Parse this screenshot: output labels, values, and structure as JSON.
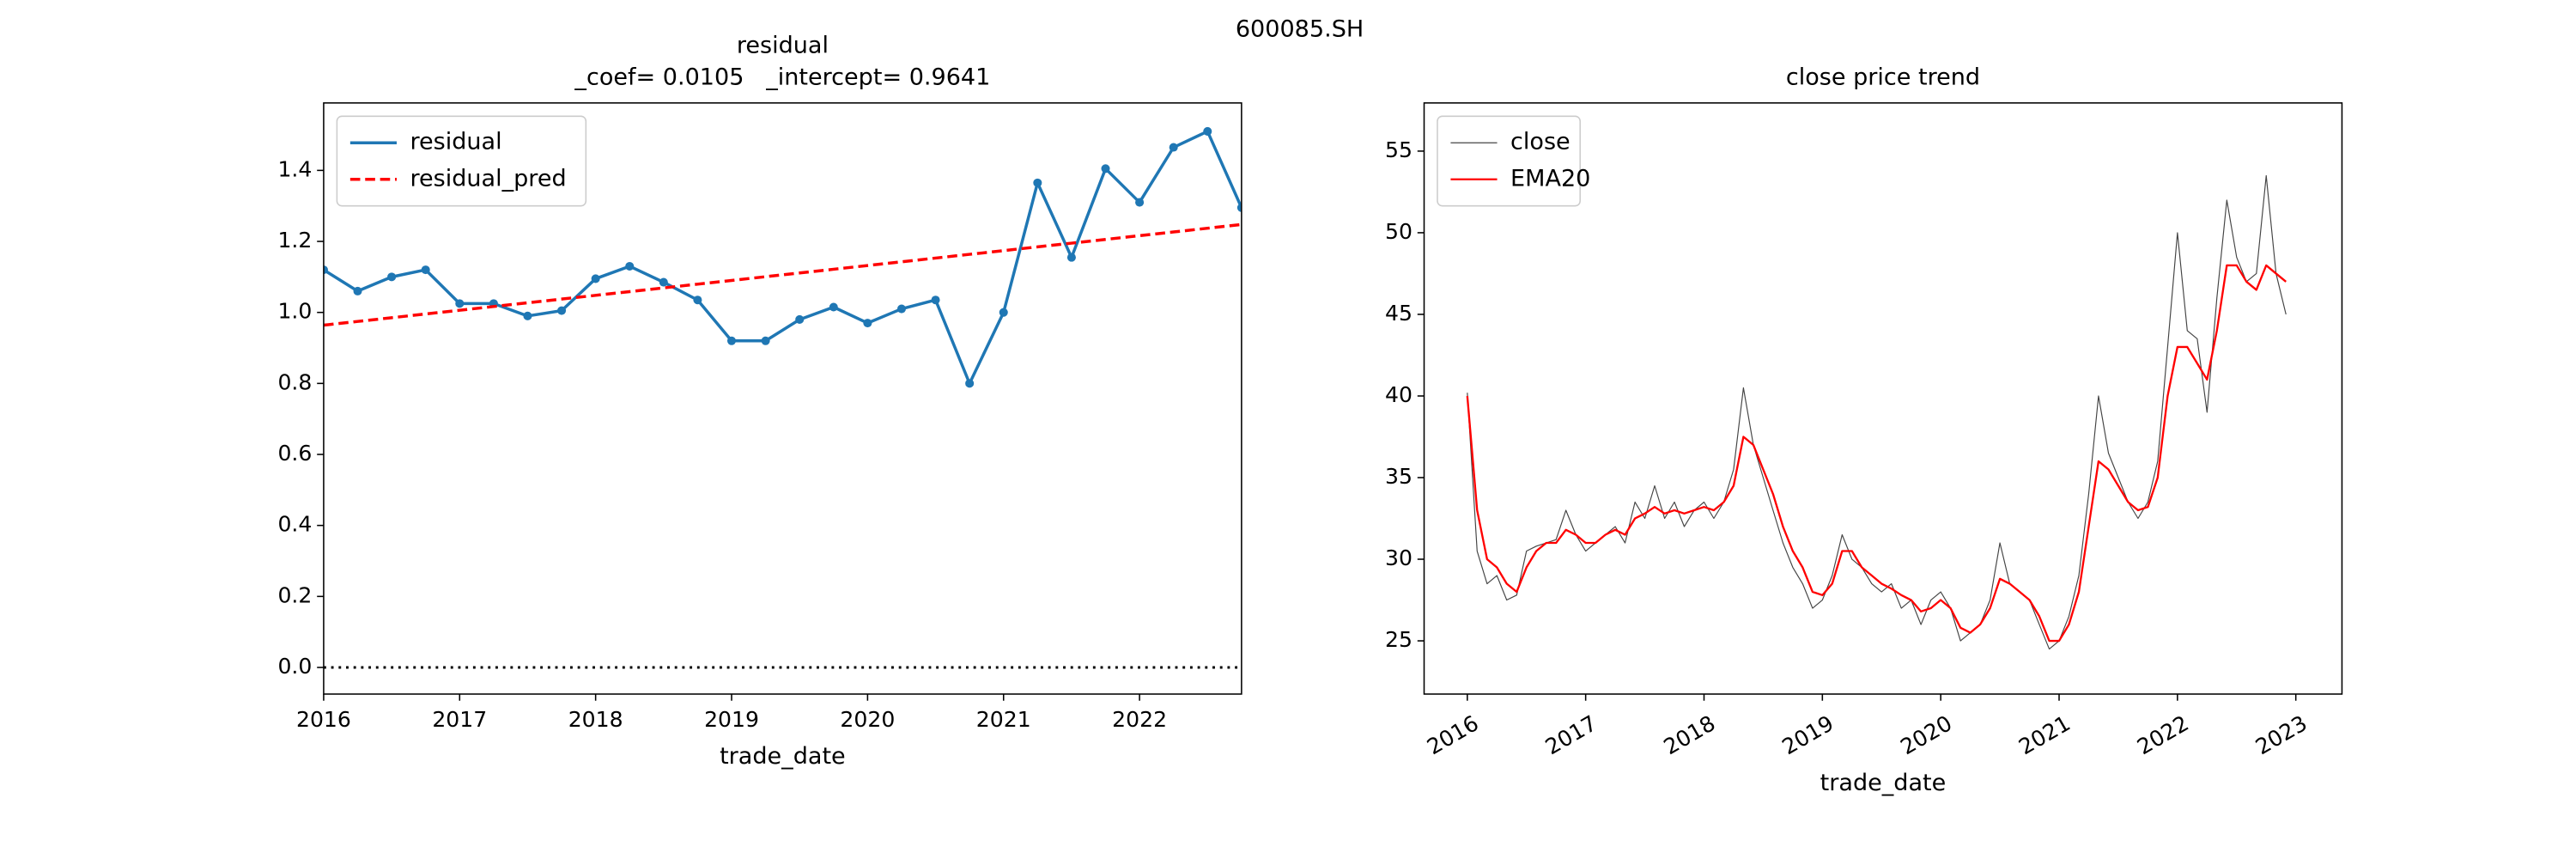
{
  "suptitle": "600085.SH",
  "chart_data": [
    {
      "type": "line",
      "title": "residual",
      "subtitle": "_coef= 0.0105   _intercept= 0.9641",
      "x_label": "trade_date",
      "x": [
        2016,
        2016.25,
        2016.5,
        2016.75,
        2017,
        2017.25,
        2017.5,
        2017.75,
        2018,
        2018.25,
        2018.5,
        2018.75,
        2019,
        2019.25,
        2019.5,
        2019.75,
        2020,
        2020.25,
        2020.5,
        2020.75,
        2021,
        2021.25,
        2021.5,
        2021.75,
        2022,
        2022.25,
        2022.5,
        2022.75
      ],
      "series": [
        {
          "name": "residual",
          "color": "#1f77b4",
          "style": "solid",
          "width": 1.8,
          "marker": true,
          "values": [
            1.12,
            1.06,
            1.1,
            1.12,
            1.025,
            1.025,
            0.99,
            1.005,
            1.095,
            1.13,
            1.085,
            1.035,
            0.92,
            0.92,
            0.98,
            1.015,
            0.97,
            1.01,
            1.035,
            0.8,
            1.0,
            1.365,
            1.155,
            1.405,
            1.31,
            1.465,
            1.51,
            1.295
          ]
        },
        {
          "name": "residual_pred",
          "color": "#ff0000",
          "style": "dashed",
          "width": 1.8,
          "marker": false,
          "values": [
            0.9641,
            0.9746,
            0.9851,
            0.9956,
            1.0061,
            1.0166,
            1.0271,
            1.0376,
            1.0481,
            1.0586,
            1.0691,
            1.0796,
            1.0901,
            1.1006,
            1.1111,
            1.1216,
            1.1321,
            1.1426,
            1.1531,
            1.1636,
            1.1741,
            1.1846,
            1.1951,
            1.2056,
            1.2161,
            1.2266,
            1.2371,
            1.2476
          ]
        }
      ],
      "hline": 0,
      "xlim": [
        2016,
        2022.75
      ],
      "xticks": [
        2016,
        2017,
        2018,
        2019,
        2020,
        2021,
        2022
      ],
      "xtick_rotation": 0,
      "ylim": [
        -0.075,
        1.59
      ],
      "yticks": [
        {
          "value": 0,
          "label": "0.0"
        },
        {
          "value": 0.2,
          "label": "0.2"
        },
        {
          "value": 0.4,
          "label": "0.4"
        },
        {
          "value": 0.6,
          "label": "0.6"
        },
        {
          "value": 0.8,
          "label": "0.8"
        },
        {
          "value": 1.0,
          "label": "1.0"
        },
        {
          "value": 1.2,
          "label": "1.2"
        },
        {
          "value": 1.4,
          "label": "1.4"
        }
      ],
      "legend": "upper left"
    },
    {
      "type": "line",
      "title": "close price trend",
      "x_label": "trade_date",
      "x": [
        2016,
        2016.083,
        2016.167,
        2016.25,
        2016.333,
        2016.417,
        2016.5,
        2016.583,
        2016.667,
        2016.75,
        2016.833,
        2016.917,
        2017,
        2017.083,
        2017.167,
        2017.25,
        2017.333,
        2017.417,
        2017.5,
        2017.583,
        2017.667,
        2017.75,
        2017.833,
        2017.917,
        2018,
        2018.083,
        2018.167,
        2018.25,
        2018.333,
        2018.417,
        2018.5,
        2018.583,
        2018.667,
        2018.75,
        2018.833,
        2018.917,
        2019,
        2019.083,
        2019.167,
        2019.25,
        2019.333,
        2019.417,
        2019.5,
        2019.583,
        2019.667,
        2019.75,
        2019.833,
        2019.917,
        2020,
        2020.083,
        2020.167,
        2020.25,
        2020.333,
        2020.417,
        2020.5,
        2020.583,
        2020.667,
        2020.75,
        2020.833,
        2020.917,
        2021,
        2021.083,
        2021.167,
        2021.25,
        2021.333,
        2021.417,
        2021.5,
        2021.583,
        2021.667,
        2021.75,
        2021.833,
        2021.917,
        2022,
        2022.083,
        2022.167,
        2022.25,
        2022.333,
        2022.417,
        2022.5,
        2022.583,
        2022.667,
        2022.75,
        2022.833,
        2022.917
      ],
      "series": [
        {
          "name": "close",
          "color": "#444444",
          "style": "solid",
          "width": 0.6,
          "marker": false,
          "values": [
            40.2,
            30.5,
            28.5,
            29.0,
            27.5,
            27.8,
            30.5,
            30.8,
            31.0,
            31.2,
            33.0,
            31.5,
            30.5,
            31.0,
            31.5,
            32.0,
            31.0,
            33.5,
            32.5,
            34.5,
            32.5,
            33.5,
            32.0,
            33.0,
            33.5,
            32.5,
            33.5,
            35.5,
            40.5,
            37.0,
            35.0,
            33.0,
            31.0,
            29.5,
            28.5,
            27.0,
            27.5,
            29.0,
            31.5,
            30.0,
            29.5,
            28.5,
            28.0,
            28.5,
            27.0,
            27.5,
            26.0,
            27.5,
            28.0,
            27.0,
            25.0,
            25.5,
            26.0,
            27.5,
            31.0,
            28.5,
            28.0,
            27.5,
            26.0,
            24.5,
            25.0,
            26.5,
            29.0,
            34.0,
            40.0,
            36.5,
            35.0,
            33.5,
            32.5,
            33.5,
            36.0,
            43.0,
            50.0,
            44.0,
            43.5,
            39.0,
            46.0,
            52.0,
            48.5,
            47.0,
            47.5,
            53.5,
            47.5,
            45.0
          ]
        },
        {
          "name": "EMA20",
          "color": "#ff0000",
          "style": "solid",
          "width": 1.2,
          "marker": false,
          "values": [
            40.0,
            33.0,
            30.0,
            29.5,
            28.5,
            28.0,
            29.5,
            30.5,
            31.0,
            31.0,
            31.8,
            31.5,
            31.0,
            31.0,
            31.5,
            31.8,
            31.5,
            32.5,
            32.8,
            33.2,
            32.8,
            33.0,
            32.8,
            33.0,
            33.2,
            33.0,
            33.5,
            34.5,
            37.5,
            37.0,
            35.5,
            34.0,
            32.0,
            30.5,
            29.5,
            28.0,
            27.8,
            28.5,
            30.5,
            30.5,
            29.5,
            29.0,
            28.5,
            28.2,
            27.8,
            27.5,
            26.8,
            27.0,
            27.5,
            27.0,
            25.8,
            25.5,
            26.0,
            27.0,
            28.8,
            28.5,
            28.0,
            27.5,
            26.5,
            25.0,
            25.0,
            26.0,
            28.0,
            32.0,
            36.0,
            35.5,
            34.5,
            33.5,
            33.0,
            33.2,
            35.0,
            40.0,
            43.0,
            43.0,
            42.0,
            41.0,
            44.0,
            48.0,
            48.0,
            47.0,
            46.5,
            48.0,
            47.5,
            47.0
          ]
        }
      ],
      "xlim": [
        2015.635,
        2023.39
      ],
      "xticks": [
        2016,
        2017,
        2018,
        2019,
        2020,
        2021,
        2022,
        2023
      ],
      "xtick_rotation": 30,
      "ylim": [
        21.74,
        57.95
      ],
      "yticks": [
        25,
        30,
        35,
        40,
        45,
        50,
        55
      ],
      "legend": "upper left"
    }
  ]
}
